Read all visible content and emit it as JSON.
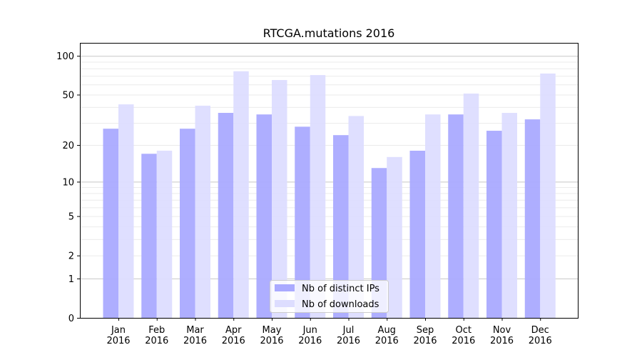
{
  "chart_data": {
    "type": "bar",
    "title": "RTCGA.mutations 2016",
    "xlabel": "",
    "ylabel": "",
    "yscale": "log10(1+y)",
    "ylim": [
      0,
      126
    ],
    "yticks": [
      0,
      1,
      2,
      5,
      10,
      20,
      50,
      100
    ],
    "grid": true,
    "legend_position": "bottom-center",
    "categories": [
      "Jan\n2016",
      "Feb\n2016",
      "Mar\n2016",
      "Apr\n2016",
      "May\n2016",
      "Jun\n2016",
      "Jul\n2016",
      "Aug\n2016",
      "Sep\n2016",
      "Oct\n2016",
      "Nov\n2016",
      "Dec\n2016"
    ],
    "series": [
      {
        "name": "Nb of distinct IPs",
        "color": "#aaaaff",
        "values": [
          27,
          17,
          27,
          36,
          35,
          28,
          24,
          13,
          18,
          35,
          26,
          32
        ]
      },
      {
        "name": "Nb of downloads",
        "color": "#ddddff",
        "values": [
          42,
          18,
          41,
          76,
          65,
          71,
          34,
          16,
          35,
          51,
          36,
          73
        ]
      }
    ]
  }
}
